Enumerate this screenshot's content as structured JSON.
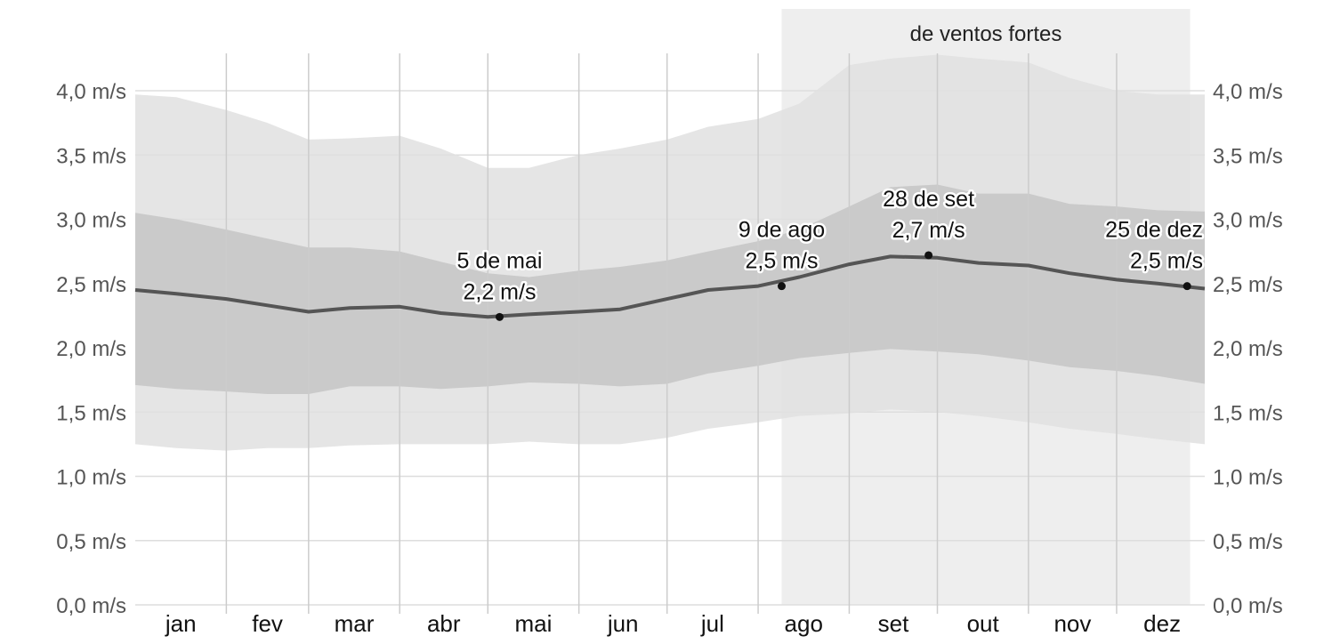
{
  "chart_data": {
    "type": "area",
    "title": "",
    "xlabel": "",
    "ylabel": "",
    "x_range_days": [
      1,
      365
    ],
    "ylim": [
      0,
      4.3
    ],
    "y_ticks": [
      "0,0 m/s",
      "0,5 m/s",
      "1,0 m/s",
      "1,5 m/s",
      "2,0 m/s",
      "2,5 m/s",
      "3,0 m/s",
      "3,5 m/s",
      "4,0 m/s"
    ],
    "y_tick_values": [
      0,
      0.5,
      1.0,
      1.5,
      2.0,
      2.5,
      3.0,
      3.5,
      4.0
    ],
    "months": [
      {
        "label": "jan",
        "start_day": 1
      },
      {
        "label": "fev",
        "start_day": 32
      },
      {
        "label": "mar",
        "start_day": 60
      },
      {
        "label": "abr",
        "start_day": 91
      },
      {
        "label": "mai",
        "start_day": 121
      },
      {
        "label": "jun",
        "start_day": 152
      },
      {
        "label": "jul",
        "start_day": 182
      },
      {
        "label": "ago",
        "start_day": 213
      },
      {
        "label": "set",
        "start_day": 244
      },
      {
        "label": "out",
        "start_day": 274
      },
      {
        "label": "nov",
        "start_day": 305
      },
      {
        "label": "dez",
        "start_day": 335
      }
    ],
    "season": {
      "label": "de ventos fortes",
      "start_day": 221,
      "end_day": 360
    },
    "x_days": [
      1,
      15,
      32,
      46,
      60,
      74,
      91,
      105,
      121,
      135,
      152,
      166,
      182,
      196,
      213,
      227,
      244,
      258,
      274,
      288,
      305,
      319,
      335,
      349,
      365
    ],
    "series": [
      {
        "key": "p90",
        "values": [
          3.97,
          3.95,
          3.85,
          3.75,
          3.62,
          3.63,
          3.65,
          3.55,
          3.4,
          3.4,
          3.5,
          3.55,
          3.62,
          3.72,
          3.78,
          3.9,
          4.2,
          4.25,
          4.28,
          4.25,
          4.22,
          4.1,
          4.0,
          3.97,
          3.97
        ]
      },
      {
        "key": "p75",
        "values": [
          3.05,
          3.0,
          2.92,
          2.85,
          2.78,
          2.78,
          2.75,
          2.67,
          2.58,
          2.55,
          2.6,
          2.63,
          2.68,
          2.75,
          2.83,
          2.92,
          3.1,
          3.25,
          3.27,
          3.2,
          3.2,
          3.12,
          3.1,
          3.07,
          3.06
        ]
      },
      {
        "key": "p25",
        "values": [
          1.71,
          1.68,
          1.66,
          1.64,
          1.64,
          1.7,
          1.7,
          1.68,
          1.7,
          1.73,
          1.72,
          1.7,
          1.72,
          1.8,
          1.86,
          1.92,
          1.96,
          1.99,
          1.97,
          1.95,
          1.9,
          1.85,
          1.82,
          1.78,
          1.72
        ]
      },
      {
        "key": "p10",
        "values": [
          1.25,
          1.22,
          1.2,
          1.22,
          1.22,
          1.24,
          1.25,
          1.25,
          1.25,
          1.27,
          1.25,
          1.25,
          1.3,
          1.37,
          1.42,
          1.47,
          1.49,
          1.52,
          1.5,
          1.47,
          1.42,
          1.37,
          1.33,
          1.29,
          1.25
        ]
      },
      {
        "key": "mean",
        "values": [
          2.45,
          2.42,
          2.38,
          2.33,
          2.28,
          2.31,
          2.32,
          2.27,
          2.24,
          2.26,
          2.28,
          2.3,
          2.38,
          2.45,
          2.48,
          2.55,
          2.65,
          2.71,
          2.7,
          2.66,
          2.64,
          2.58,
          2.53,
          2.5,
          2.46
        ]
      }
    ],
    "annotations": [
      {
        "date": "5 de mai",
        "value": "2,2 m/s",
        "day": 125,
        "y": 2.24
      },
      {
        "date": "9 de ago",
        "value": "2,5 m/s",
        "day": 221,
        "y": 2.48
      },
      {
        "date": "28 de set",
        "value": "2,7 m/s",
        "day": 271,
        "y": 2.72
      },
      {
        "date": "25 de dez",
        "value": "2,5 m/s",
        "day": 359,
        "y": 2.48
      }
    ],
    "grid": true,
    "colors": {
      "band_outer": "#e0e0e0",
      "band_inner": "#c6c6c6",
      "mean_line": "#555555",
      "season_bg": "#eeeeee",
      "grid": "#dddddd",
      "month_line": "#cccccc"
    }
  }
}
